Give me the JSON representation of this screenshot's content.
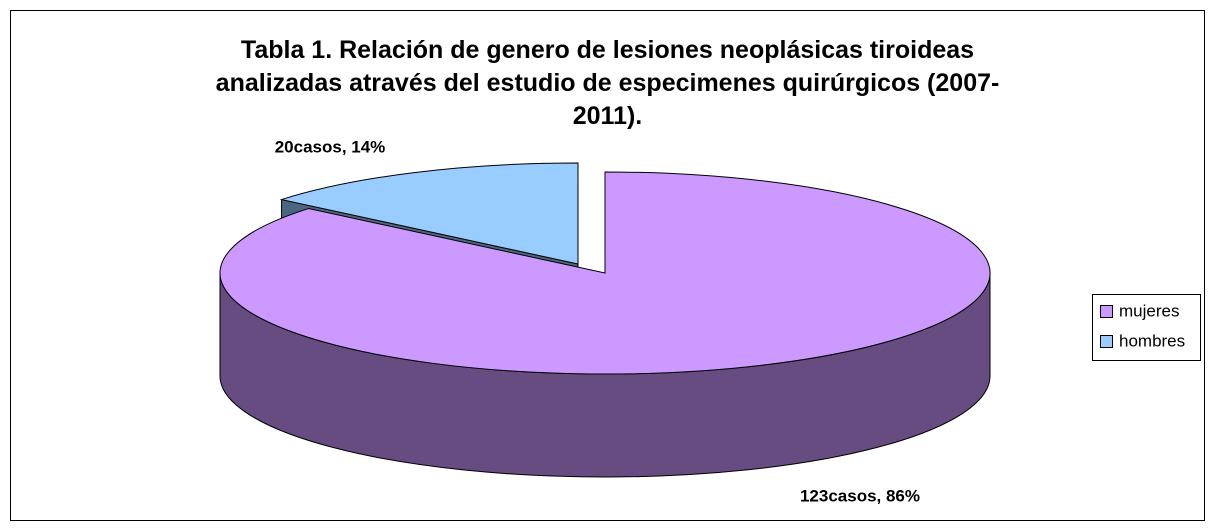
{
  "chart_data": {
    "type": "pie3d",
    "title": "Tabla 1. Relación  de genero de lesiones neoplásicas tiroideas\nanalizadas através del estudio de especimenes quirúrgicos (2007-\n2011).",
    "categories": [
      "mujeres",
      "hombres"
    ],
    "values": [
      123,
      20
    ],
    "value_labels": [
      "123casos, 86%",
      "20casos, 14%"
    ],
    "colors": [
      "#CC99FF",
      "#99CCFF"
    ],
    "side_colors": [
      "#664C80",
      "#4C6680"
    ],
    "legend": "right"
  }
}
